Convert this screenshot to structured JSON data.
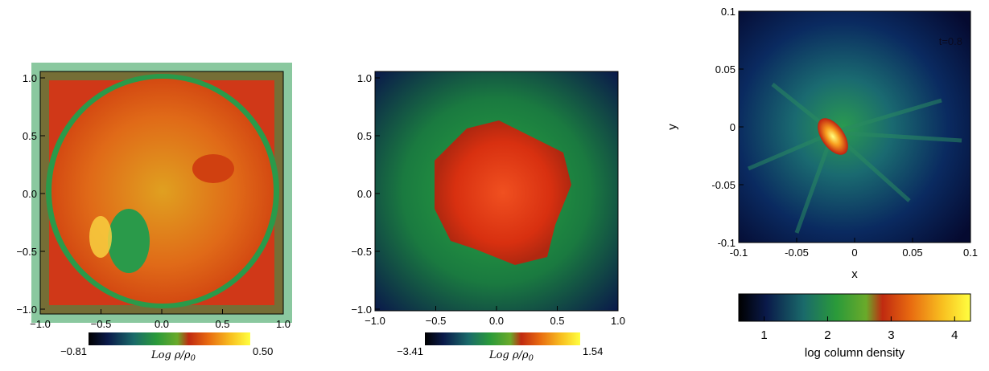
{
  "panels": [
    {
      "id": "panel-1",
      "x_ticks": [
        "−1.0",
        "−0.5",
        "0.0",
        "0.5",
        "1.0"
      ],
      "y_ticks": [
        "1.0",
        "0.5",
        "0.0",
        "−0.5",
        "−1.0"
      ],
      "colorbar": {
        "min_label": "−0.81",
        "max_label": "0.50",
        "label": "Log ρ/ρ",
        "label_sub": "0"
      }
    },
    {
      "id": "panel-2",
      "x_ticks": [
        "−1.0",
        "−0.5",
        "0.0",
        "0.5",
        "1.0"
      ],
      "y_ticks": [
        "1.0",
        "0.5",
        "0.0",
        "−0.5",
        "−1.0"
      ],
      "colorbar": {
        "min_label": "−3.41",
        "max_label": "1.54",
        "label": "Log ρ/ρ",
        "label_sub": "0"
      }
    },
    {
      "id": "panel-3",
      "x_ticks": [
        "-0.1",
        "-0.05",
        "0",
        "0.05",
        "0.1"
      ],
      "y_ticks": [
        "0.1",
        "0.05",
        "0",
        "-0.05",
        "-0.1"
      ],
      "xlabel": "x",
      "ylabel": "y",
      "corner_label": "t=0.8",
      "colorbar": {
        "ticks": [
          "1",
          "2",
          "3",
          "4"
        ],
        "label": "log column density"
      }
    }
  ],
  "colors": {
    "colormap": [
      "#000000",
      "#0a1a4a",
      "#1a5a6a",
      "#2a9a3a",
      "#6aaa2a",
      "#c02a10",
      "#e86a10",
      "#f8c020",
      "#ffff60"
    ]
  }
}
